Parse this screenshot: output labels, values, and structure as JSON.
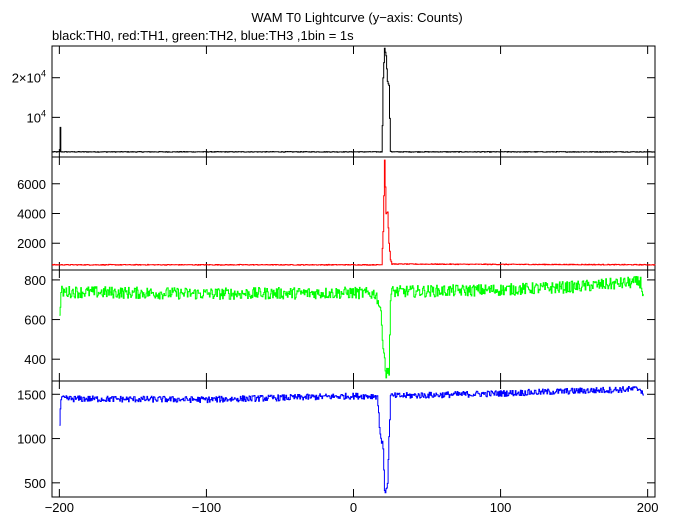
{
  "chart_data": {
    "type": "line",
    "title": "WAM T0 Lightcurve (y−axis: Counts)",
    "subtitle": "black:TH0, red:TH1, green:TH2, blue:TH3 ,1bin = 1s",
    "xlim": [
      -205,
      205
    ],
    "x_ticks": [
      -200,
      -100,
      0,
      100,
      200
    ],
    "x_tick_labels": [
      "−200",
      "−100",
      "0",
      "100",
      "200"
    ],
    "shared_x": true,
    "grid": false,
    "legend": "none",
    "panels": [
      {
        "series": "TH0",
        "color": "#000000",
        "ylim": [
          0,
          28000
        ],
        "y_ticks": [
          10000,
          20000
        ],
        "y_tick_labels": [
          {
            "base": "10",
            "sup": "4"
          },
          {
            "base": "2×10",
            "sup": "4"
          }
        ],
        "baseline": 1300,
        "noise": 80,
        "points": [
          [
            -205,
            1300
          ],
          [
            -200,
            1300
          ],
          [
            -199.5,
            7500
          ],
          [
            -199,
            1300
          ],
          [
            19,
            1300
          ],
          [
            19.5,
            8000
          ],
          [
            20,
            20000
          ],
          [
            21,
            27500
          ],
          [
            22,
            25500
          ],
          [
            23,
            19000
          ],
          [
            24,
            18000
          ],
          [
            25,
            1500
          ],
          [
            26,
            1300
          ],
          [
            205,
            1300
          ]
        ]
      },
      {
        "series": "TH1",
        "color": "#ff0000",
        "ylim": [
          200,
          7800
        ],
        "y_ticks": [
          2000,
          4000,
          6000
        ],
        "y_tick_labels": [
          "2000",
          "4000",
          "6000"
        ],
        "baseline": 550,
        "noise": 25,
        "points": [
          [
            -205,
            550
          ],
          [
            19,
            550
          ],
          [
            20,
            2800
          ],
          [
            21,
            7600
          ],
          [
            22,
            4000
          ],
          [
            23,
            4100
          ],
          [
            24,
            2000
          ],
          [
            25,
            900
          ],
          [
            26,
            600
          ],
          [
            205,
            550
          ]
        ]
      },
      {
        "series": "TH2",
        "color": "#00ff00",
        "ylim": [
          290,
          850
        ],
        "y_ticks": [
          400,
          600,
          800
        ],
        "y_tick_labels": [
          "400",
          "600",
          "800"
        ],
        "baseline": 740,
        "noise": 30,
        "points": [
          [
            -200,
            600
          ],
          [
            -199,
            740
          ],
          [
            -100,
            730
          ],
          [
            0,
            735
          ],
          [
            15,
            730
          ],
          [
            18,
            660
          ],
          [
            20,
            480
          ],
          [
            22,
            320
          ],
          [
            24,
            350
          ],
          [
            25,
            700
          ],
          [
            26,
            740
          ],
          [
            100,
            750
          ],
          [
            150,
            765
          ],
          [
            195,
            790
          ],
          [
            197,
            720
          ]
        ]
      },
      {
        "series": "TH3",
        "color": "#0000ff",
        "ylim": [
          340,
          1650
        ],
        "y_ticks": [
          500,
          1000,
          1500
        ],
        "y_tick_labels": [
          "500",
          "1000",
          "1500"
        ],
        "baseline": 1450,
        "noise": 35,
        "points": [
          [
            -200,
            1150
          ],
          [
            -199,
            1450
          ],
          [
            -100,
            1440
          ],
          [
            0,
            1480
          ],
          [
            16,
            1480
          ],
          [
            18,
            1050
          ],
          [
            20,
            900
          ],
          [
            21,
            380
          ],
          [
            23,
            500
          ],
          [
            24,
            1000
          ],
          [
            25,
            1480
          ],
          [
            100,
            1510
          ],
          [
            195,
            1560
          ],
          [
            197,
            1500
          ]
        ]
      }
    ]
  }
}
